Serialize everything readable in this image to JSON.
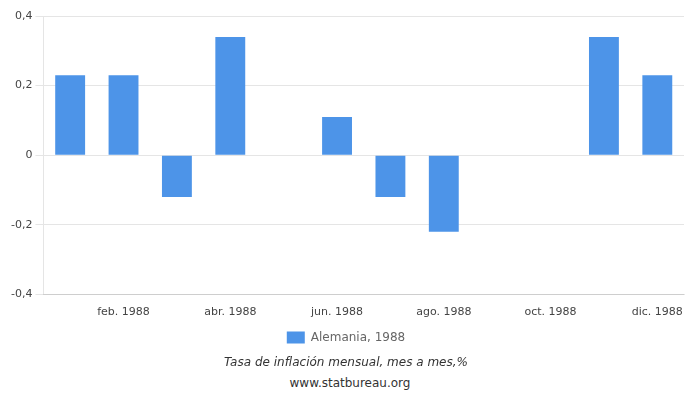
{
  "chart_data": {
    "type": "bar",
    "subtitle": "Tasa de inflación mensual, mes a mes,%",
    "annotations": [
      "www.statbureau.org"
    ],
    "categories": [
      null,
      "feb. 1988",
      null,
      "abr. 1988",
      null,
      "jun. 1988",
      null,
      "ago. 1988",
      null,
      "oct. 1988",
      null,
      "dic. 1988"
    ],
    "series": [
      {
        "name": "Alemania, 1988",
        "color": "#4d94e8",
        "values": [
          0.23,
          0.23,
          -0.12,
          0.34,
          0.0,
          0.11,
          -0.12,
          -0.22,
          0.0,
          0.0,
          0.34,
          0.23
        ]
      }
    ],
    "ylim": [
      -0.4,
      0.4
    ],
    "yticks": [
      {
        "value": -0.4,
        "label": "-0,4"
      },
      {
        "value": -0.2,
        "label": "-0,2"
      },
      0,
      {
        "value": 0.2,
        "label": "0,2"
      },
      {
        "value": 0.4,
        "label": "0,4"
      }
    ],
    "grid": true,
    "legend": "bottom"
  }
}
